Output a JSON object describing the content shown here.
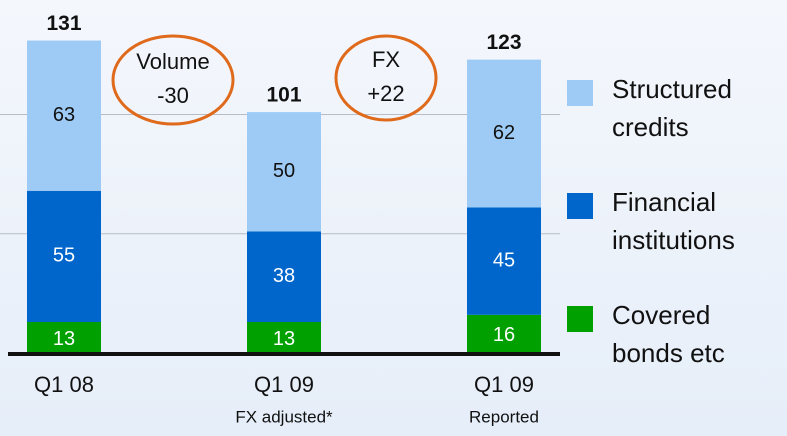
{
  "chart_data": {
    "type": "stacked_bar",
    "categories": [
      "Q1 08",
      "Q1 09",
      "Q1 09"
    ],
    "category_notes": [
      null,
      "FX adjusted*",
      "Reported"
    ],
    "series": [
      {
        "name": "Covered bonds etc",
        "color": "#00a000",
        "values": [
          13,
          13,
          16
        ]
      },
      {
        "name": "Financial institutions",
        "color": "#0066cc",
        "values": [
          55,
          38,
          45
        ]
      },
      {
        "name": "Structured credits",
        "color": "#9dcbf5",
        "values": [
          63,
          50,
          62
        ]
      }
    ],
    "totals": [
      131,
      101,
      123
    ],
    "annotations": [
      {
        "line1": "Volume",
        "line2": "-30"
      },
      {
        "line1": "FX",
        "line2": "+22"
      }
    ],
    "ylim": [
      0,
      148
    ],
    "yticks": [
      50,
      100
    ],
    "grid": true
  }
}
